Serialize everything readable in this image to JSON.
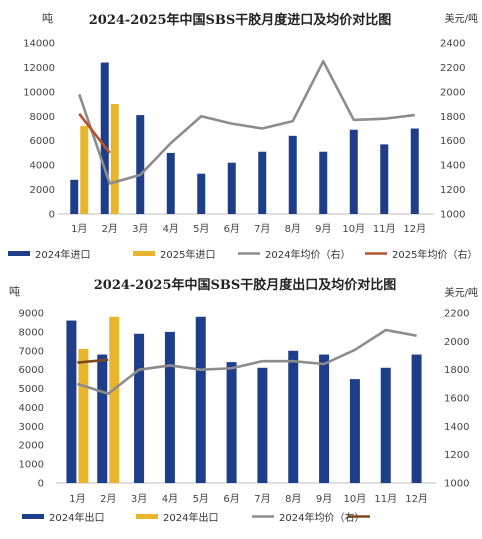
{
  "chart_data": [
    {
      "type": "bar",
      "title": "2024-2025年中国SBS干胶月度进口及均价对比图",
      "y_left_unit": "吨",
      "y_right_unit": "美元/吨",
      "categories": [
        "1月",
        "2月",
        "3月",
        "4月",
        "5月",
        "6月",
        "7月",
        "8月",
        "9月",
        "10月",
        "11月",
        "12月"
      ],
      "ylim_left": [
        0,
        14000
      ],
      "ylim_right": [
        1000,
        2400
      ],
      "left_ticks": [
        "0",
        "2000",
        "4000",
        "6000",
        "8000",
        "10000",
        "12000",
        "14000"
      ],
      "right_ticks": [
        "1000",
        "1200",
        "1400",
        "1600",
        "1800",
        "2000",
        "2200",
        "2400"
      ],
      "grid": false,
      "legend_position": "bottom",
      "series": [
        {
          "name": "2024年进口",
          "type": "bar",
          "axis": "left",
          "color": "#1f3e8a",
          "values": [
            2800,
            12400,
            8100,
            5000,
            3300,
            4200,
            5100,
            6400,
            5100,
            6900,
            5700,
            7000
          ]
        },
        {
          "name": "2025年进口",
          "type": "bar",
          "axis": "left",
          "color": "#e8b52c",
          "values": [
            7200,
            9000,
            null,
            null,
            null,
            null,
            null,
            null,
            null,
            null,
            null,
            null
          ]
        },
        {
          "name": "2024年均价（右）",
          "type": "line",
          "axis": "right",
          "color": "#8c8c8c",
          "values": [
            1980,
            1250,
            1320,
            1580,
            1800,
            1740,
            1700,
            1760,
            2250,
            1770,
            1780,
            1810
          ]
        },
        {
          "name": "2025年均价（右）",
          "type": "line",
          "axis": "right",
          "color": "#b5522f",
          "values": [
            1820,
            1500,
            null,
            null,
            null,
            null,
            null,
            null,
            null,
            null,
            null,
            null
          ]
        }
      ]
    },
    {
      "type": "bar",
      "title": "2024-2025年中国SBS干胶月度出口及均价对比图",
      "y_left_unit": "吨",
      "y_right_unit": "美元/吨",
      "categories": [
        "1月",
        "2月",
        "3月",
        "4月",
        "5月",
        "6月",
        "7月",
        "8月",
        "9月",
        "10月",
        "11月",
        "12月"
      ],
      "ylim_left": [
        0,
        9000
      ],
      "ylim_right": [
        1000,
        2200
      ],
      "left_ticks": [
        "0",
        "1000",
        "2000",
        "3000",
        "4000",
        "5000",
        "6000",
        "7000",
        "8000",
        "9000"
      ],
      "right_ticks": [
        "1000",
        "1200",
        "1400",
        "1600",
        "1800",
        "2000",
        "2200"
      ],
      "grid": false,
      "legend_position": "bottom",
      "series": [
        {
          "name": "2024年出口",
          "type": "bar",
          "axis": "left",
          "color": "#1f3e8a",
          "values": [
            8600,
            6800,
            7900,
            8000,
            8800,
            6400,
            6100,
            7000,
            6800,
            5500,
            6100,
            6800
          ]
        },
        {
          "name": "2024年出口",
          "type": "bar",
          "axis": "left",
          "color": "#e8b52c",
          "values": [
            7100,
            8800,
            null,
            null,
            null,
            null,
            null,
            null,
            null,
            null,
            null,
            null
          ]
        },
        {
          "name": "2024年均价（右）",
          "type": "line",
          "axis": "right",
          "color": "#8c8c8c",
          "values": [
            1700,
            1630,
            1800,
            1830,
            1800,
            1810,
            1860,
            1860,
            1840,
            1940,
            2080,
            2040
          ]
        },
        {
          "name": "",
          "type": "line",
          "axis": "right",
          "color": "#7a4a1c",
          "values": [
            1850,
            1870,
            null,
            null,
            null,
            null,
            null,
            null,
            null,
            null,
            null,
            null
          ]
        }
      ]
    }
  ]
}
